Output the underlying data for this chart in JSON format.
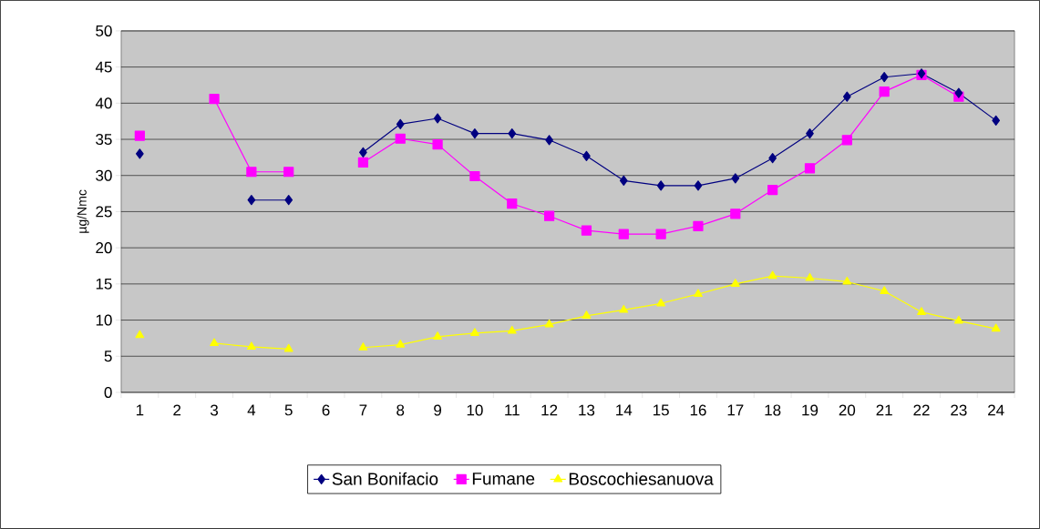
{
  "chart_data": {
    "type": "line",
    "ylabel": "µg/Nmc",
    "categories": [
      "1",
      "2",
      "3",
      "4",
      "5",
      "6",
      "7",
      "8",
      "9",
      "10",
      "11",
      "12",
      "13",
      "14",
      "15",
      "16",
      "17",
      "18",
      "19",
      "20",
      "21",
      "22",
      "23",
      "24"
    ],
    "series": [
      {
        "name": "San Bonifacio",
        "color": "#000080",
        "marker": "diamond",
        "values": [
          33.0,
          null,
          null,
          26.6,
          26.6,
          null,
          33.2,
          37.1,
          37.9,
          35.8,
          35.8,
          34.9,
          32.7,
          29.3,
          28.6,
          28.6,
          29.6,
          32.4,
          35.8,
          40.9,
          43.6,
          44.1,
          41.4,
          37.6
        ]
      },
      {
        "name": "Fumane",
        "color": "#ff00ff",
        "marker": "square",
        "values": [
          35.5,
          null,
          40.6,
          30.5,
          30.5,
          null,
          31.8,
          35.1,
          34.3,
          29.9,
          26.1,
          24.4,
          22.4,
          21.9,
          21.9,
          23.0,
          24.7,
          28.0,
          31.0,
          34.9,
          41.6,
          43.9,
          40.9,
          null
        ]
      },
      {
        "name": "Boscochiesanuova",
        "color": "#ffff00",
        "marker": "triangle",
        "values": [
          7.9,
          null,
          6.8,
          6.3,
          6.0,
          null,
          6.2,
          6.6,
          7.7,
          8.2,
          8.5,
          9.4,
          10.6,
          11.4,
          12.3,
          13.6,
          15.0,
          16.1,
          15.8,
          15.3,
          14.0,
          11.1,
          9.9,
          8.8
        ]
      }
    ],
    "ylim": [
      0,
      50
    ],
    "yticks": [
      0,
      5,
      10,
      15,
      20,
      25,
      30,
      35,
      40,
      45,
      50
    ],
    "grid": "y",
    "legend": "bottom"
  }
}
